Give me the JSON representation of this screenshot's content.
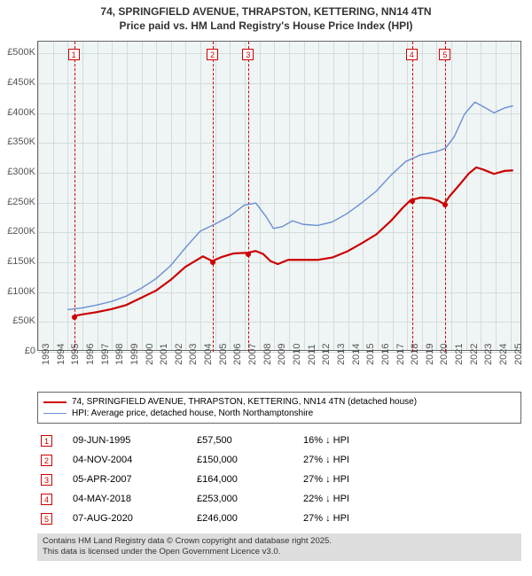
{
  "title": {
    "line1": "74, SPRINGFIELD AVENUE, THRAPSTON, KETTERING, NN14 4TN",
    "line2": "Price paid vs. HM Land Registry's House Price Index (HPI)"
  },
  "chart": {
    "background_color": "#eff4f4",
    "grid_color": "#d3dcdc",
    "border_color": "#666666",
    "x": {
      "min": 1993,
      "max": 2025.8,
      "ticks": [
        1993,
        1994,
        1995,
        1996,
        1997,
        1998,
        1999,
        2000,
        2001,
        2002,
        2003,
        2004,
        2005,
        2006,
        2007,
        2008,
        2009,
        2010,
        2011,
        2012,
        2013,
        2014,
        2015,
        2016,
        2017,
        2018,
        2019,
        2020,
        2021,
        2022,
        2023,
        2024,
        2025
      ]
    },
    "y": {
      "min": 0,
      "max": 520000,
      "ticks": [
        0,
        50000,
        100000,
        150000,
        200000,
        250000,
        300000,
        350000,
        400000,
        450000,
        500000
      ],
      "labels": [
        "£0",
        "£50K",
        "£100K",
        "£150K",
        "£200K",
        "£250K",
        "£300K",
        "£350K",
        "£400K",
        "£450K",
        "£500K"
      ]
    },
    "series": [
      {
        "name": "subject",
        "label": "74, SPRINGFIELD AVENUE, THRAPSTON, KETTERING, NN14 4TN (detached house)",
        "color": "#cc0000",
        "width": 2.2,
        "points": [
          [
            1995.44,
            57500
          ],
          [
            1996,
            60000
          ],
          [
            1997,
            64000
          ],
          [
            1998,
            69000
          ],
          [
            1999,
            76000
          ],
          [
            2000,
            88000
          ],
          [
            2001,
            100000
          ],
          [
            2002,
            118000
          ],
          [
            2003,
            140000
          ],
          [
            2004.2,
            158000
          ],
          [
            2004.84,
            150000
          ],
          [
            2005.5,
            157000
          ],
          [
            2006.3,
            163000
          ],
          [
            2007.26,
            164000
          ],
          [
            2007.8,
            167000
          ],
          [
            2008.3,
            162000
          ],
          [
            2008.8,
            150000
          ],
          [
            2009.3,
            145000
          ],
          [
            2010,
            152000
          ],
          [
            2011,
            152000
          ],
          [
            2012,
            152000
          ],
          [
            2013,
            156000
          ],
          [
            2014,
            166000
          ],
          [
            2015,
            180000
          ],
          [
            2016,
            195000
          ],
          [
            2017,
            218000
          ],
          [
            2017.8,
            240000
          ],
          [
            2018.34,
            253000
          ],
          [
            2018.7,
            255000
          ],
          [
            2019,
            257000
          ],
          [
            2019.7,
            256000
          ],
          [
            2020.2,
            252000
          ],
          [
            2020.6,
            246000
          ],
          [
            2021,
            260000
          ],
          [
            2021.7,
            280000
          ],
          [
            2022.3,
            298000
          ],
          [
            2022.8,
            308000
          ],
          [
            2023.3,
            304000
          ],
          [
            2024,
            297000
          ],
          [
            2024.7,
            302000
          ],
          [
            2025.3,
            303000
          ]
        ]
      },
      {
        "name": "hpi",
        "label": "HPI: Average price, detached house, North Northamptonshire",
        "color": "#6a8fd4",
        "width": 1.4,
        "points": [
          [
            1995,
            68000
          ],
          [
            1996,
            71000
          ],
          [
            1997,
            76000
          ],
          [
            1998,
            82000
          ],
          [
            1999,
            91000
          ],
          [
            2000,
            104000
          ],
          [
            2001,
            120000
          ],
          [
            2002,
            142000
          ],
          [
            2003,
            172000
          ],
          [
            2004,
            200000
          ],
          [
            2005,
            212000
          ],
          [
            2006,
            225000
          ],
          [
            2007,
            244000
          ],
          [
            2007.8,
            248000
          ],
          [
            2008.5,
            225000
          ],
          [
            2009,
            205000
          ],
          [
            2009.6,
            208000
          ],
          [
            2010.3,
            218000
          ],
          [
            2011,
            212000
          ],
          [
            2012,
            210000
          ],
          [
            2013,
            216000
          ],
          [
            2014,
            230000
          ],
          [
            2015,
            248000
          ],
          [
            2016,
            268000
          ],
          [
            2017,
            295000
          ],
          [
            2018,
            318000
          ],
          [
            2019,
            329000
          ],
          [
            2020,
            334000
          ],
          [
            2020.7,
            340000
          ],
          [
            2021.3,
            360000
          ],
          [
            2022,
            398000
          ],
          [
            2022.7,
            418000
          ],
          [
            2023.3,
            410000
          ],
          [
            2024,
            400000
          ],
          [
            2024.7,
            408000
          ],
          [
            2025.3,
            412000
          ]
        ]
      }
    ],
    "event_markers": [
      {
        "n": "1",
        "x": 1995.44,
        "y": 57500
      },
      {
        "n": "2",
        "x": 2004.84,
        "y": 150000
      },
      {
        "n": "3",
        "x": 2007.26,
        "y": 164000
      },
      {
        "n": "4",
        "x": 2018.34,
        "y": 253000
      },
      {
        "n": "5",
        "x": 2020.6,
        "y": 246000
      }
    ]
  },
  "legend": {
    "rows": [
      {
        "color": "#cc0000",
        "thick": 2.2,
        "text": "74, SPRINGFIELD AVENUE, THRAPSTON, KETTERING, NN14 4TN (detached house)"
      },
      {
        "color": "#6a8fd4",
        "thick": 1.4,
        "text": "HPI: Average price, detached house, North Northamptonshire"
      }
    ]
  },
  "transactions": [
    {
      "n": "1",
      "date": "09-JUN-1995",
      "price": "£57,500",
      "delta": "16% ↓ HPI"
    },
    {
      "n": "2",
      "date": "04-NOV-2004",
      "price": "£150,000",
      "delta": "27% ↓ HPI"
    },
    {
      "n": "3",
      "date": "05-APR-2007",
      "price": "£164,000",
      "delta": "27% ↓ HPI"
    },
    {
      "n": "4",
      "date": "04-MAY-2018",
      "price": "£253,000",
      "delta": "22% ↓ HPI"
    },
    {
      "n": "5",
      "date": "07-AUG-2020",
      "price": "£246,000",
      "delta": "27% ↓ HPI"
    }
  ],
  "footer": {
    "line1": "Contains HM Land Registry data © Crown copyright and database right 2025.",
    "line2": "This data is licensed under the Open Government Licence v3.0."
  }
}
